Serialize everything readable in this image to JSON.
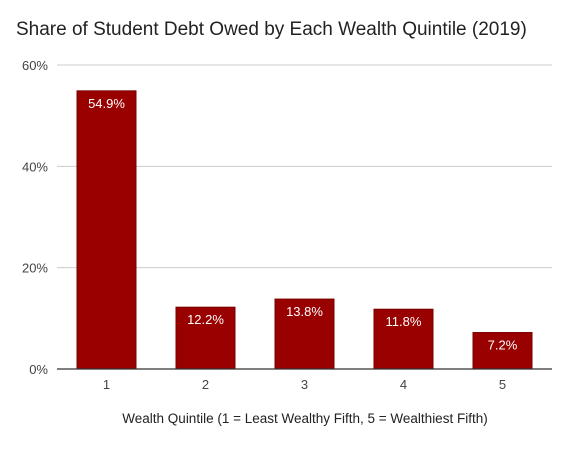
{
  "chart_data": {
    "type": "bar",
    "title": "Share of Student Debt Owed by Each Wealth Quintile (2019)",
    "xlabel": "Wealth Quintile (1 = Least Wealthy Fifth, 5 = Wealthiest Fifth)",
    "ylabel": "",
    "categories": [
      "1",
      "2",
      "3",
      "4",
      "5"
    ],
    "values": [
      54.9,
      12.2,
      13.8,
      11.8,
      7.2
    ],
    "data_labels": [
      "54.9%",
      "12.2%",
      "13.8%",
      "11.8%",
      "7.2%"
    ],
    "ylim": [
      0,
      60
    ],
    "yticks": [
      0,
      20,
      40,
      60
    ],
    "ytick_labels": [
      "0%",
      "20%",
      "40%",
      "60%"
    ],
    "grid": true,
    "legend": "none",
    "bar_color": "#990000",
    "grid_color": "#cccccc",
    "axis_color": "#333333",
    "label_color": "#ffffff"
  }
}
